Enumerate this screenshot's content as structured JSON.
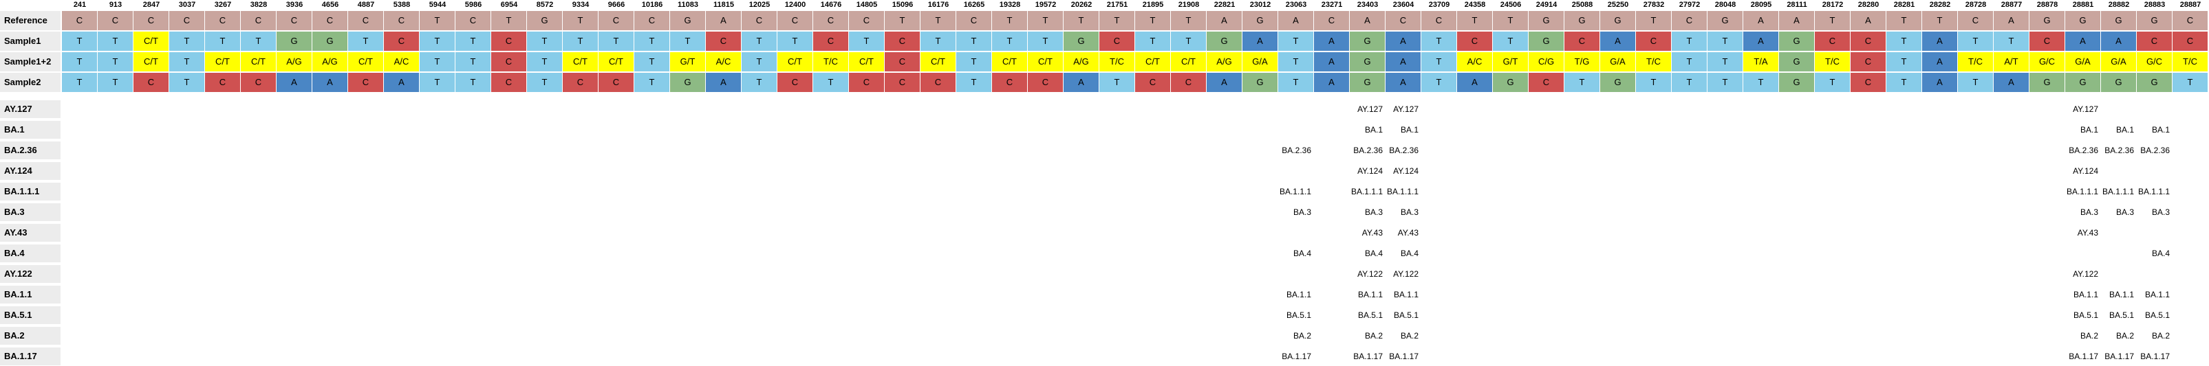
{
  "colors": {
    "A": "#4a86c5",
    "C": "#cf5151",
    "G": "#8dba84",
    "T": "#87cce9",
    "ref": "#c9a59e",
    "mixed": "#ffff00",
    "label_shade": "#ececec"
  },
  "positions": [
    "241",
    "913",
    "2847",
    "3037",
    "3267",
    "3828",
    "3936",
    "4656",
    "4887",
    "5388",
    "5944",
    "5986",
    "6954",
    "8572",
    "9334",
    "9666",
    "10186",
    "11083",
    "11815",
    "12025",
    "12400",
    "14676",
    "14805",
    "15096",
    "16176",
    "16265",
    "19328",
    "19572",
    "20262",
    "21751",
    "21895",
    "21908",
    "22821",
    "23012",
    "23063",
    "23271",
    "23403",
    "23604",
    "23709",
    "24358",
    "24506",
    "24914",
    "25088",
    "25250",
    "27832",
    "27972",
    "28048",
    "28095",
    "28111",
    "28172",
    "28280",
    "28281",
    "28282",
    "28728",
    "28877",
    "28878",
    "28881",
    "28882",
    "28883",
    "28887"
  ],
  "rows": [
    {
      "label": "Reference",
      "cells": [
        "C",
        "C",
        "C",
        "C",
        "C",
        "C",
        "C",
        "C",
        "C",
        "C",
        "T",
        "C",
        "T",
        "G",
        "T",
        "C",
        "C",
        "G",
        "A",
        "C",
        "C",
        "C",
        "C",
        "T",
        "T",
        "C",
        "T",
        "T",
        "T",
        "T",
        "T",
        "T",
        "A",
        "G",
        "A",
        "C",
        "A",
        "C",
        "C",
        "T",
        "T",
        "G",
        "G",
        "G",
        "T",
        "C",
        "G",
        "A",
        "A",
        "T",
        "A",
        "T",
        "T",
        "C",
        "A",
        "G",
        "G",
        "G",
        "G",
        "C"
      ]
    },
    {
      "label": "Sample1",
      "cells": [
        "T",
        "T",
        "C/T",
        "T",
        "T",
        "T",
        "G",
        "G",
        "T",
        "C",
        "T",
        "T",
        "C",
        "T",
        "T",
        "T",
        "T",
        "T",
        "C",
        "T",
        "T",
        "C",
        "T",
        "C",
        "T",
        "T",
        "T",
        "T",
        "G",
        "C",
        "T",
        "T",
        "G",
        "A",
        "T",
        "A",
        "G",
        "A",
        "T",
        "C",
        "T",
        "G",
        "C",
        "A",
        "C",
        "T",
        "T",
        "A",
        "G",
        "C",
        "C",
        "T",
        "A",
        "T",
        "T",
        "C",
        "A",
        "A",
        "C",
        "C"
      ]
    },
    {
      "label": "Sample1+2",
      "cells": [
        "T",
        "T",
        "C/T",
        "T",
        "C/T",
        "C/T",
        "A/G",
        "A/G",
        "C/T",
        "A/C",
        "T",
        "T",
        "C",
        "T",
        "C/T",
        "C/T",
        "T",
        "G/T",
        "A/C",
        "T",
        "C/T",
        "T/C",
        "C/T",
        "C",
        "C/T",
        "T",
        "C/T",
        "C/T",
        "A/G",
        "T/C",
        "C/T",
        "C/T",
        "A/G",
        "G/A",
        "T",
        "A",
        "G",
        "A",
        "T",
        "A/C",
        "G/T",
        "C/G",
        "T/G",
        "G/A",
        "T/C",
        "T",
        "T",
        "T/A",
        "G",
        "T/C",
        "C",
        "T",
        "A",
        "T/C",
        "A/T",
        "G/C",
        "G/A",
        "G/A",
        "G/C",
        "T/C"
      ]
    },
    {
      "label": "Sample2",
      "cells": [
        "T",
        "T",
        "C",
        "T",
        "C",
        "C",
        "A",
        "A",
        "C",
        "A",
        "T",
        "T",
        "C",
        "T",
        "C",
        "C",
        "T",
        "G",
        "A",
        "T",
        "C",
        "T",
        "C",
        "C",
        "C",
        "T",
        "C",
        "C",
        "A",
        "T",
        "C",
        "C",
        "A",
        "G",
        "T",
        "A",
        "G",
        "A",
        "T",
        "A",
        "G",
        "C",
        "T",
        "G",
        "T",
        "T",
        "T",
        "T",
        "G",
        "T",
        "C",
        "T",
        "A",
        "T",
        "A",
        "G",
        "G",
        "G",
        "G",
        "T"
      ]
    }
  ],
  "lineage_labels": [
    "AY.127",
    "BA.1",
    "BA.2.36",
    "AY.124",
    "BA.1.1.1",
    "BA.3",
    "AY.43",
    "BA.4",
    "AY.122",
    "BA.1.1",
    "BA.5.1",
    "BA.2",
    "BA.1.17"
  ],
  "lineage_columns": [
    "23063",
    "23403",
    "23604",
    "28881",
    "28882",
    "28883"
  ],
  "lineage_values": [
    [
      "",
      "AY.127",
      "AY.127",
      "AY.127",
      "",
      ""
    ],
    [
      "",
      "BA.1",
      "BA.1",
      "BA.1",
      "BA.1",
      "BA.1"
    ],
    [
      "BA.2.36",
      "BA.2.36",
      "BA.2.36",
      "BA.2.36",
      "BA.2.36",
      "BA.2.36"
    ],
    [
      "",
      "AY.124",
      "AY.124",
      "AY.124",
      "",
      ""
    ],
    [
      "BA.1.1.1",
      "BA.1.1.1",
      "BA.1.1.1",
      "BA.1.1.1",
      "BA.1.1.1",
      "BA.1.1.1"
    ],
    [
      "BA.3",
      "BA.3",
      "BA.3",
      "BA.3",
      "BA.3",
      "BA.3"
    ],
    [
      "",
      "AY.43",
      "AY.43",
      "AY.43",
      "",
      ""
    ],
    [
      "BA.4",
      "BA.4",
      "BA.4",
      "",
      "",
      "BA.4"
    ],
    [
      "",
      "AY.122",
      "AY.122",
      "AY.122",
      "",
      ""
    ],
    [
      "BA.1.1",
      "BA.1.1",
      "BA.1.1",
      "BA.1.1",
      "BA.1.1",
      "BA.1.1"
    ],
    [
      "BA.5.1",
      "BA.5.1",
      "BA.5.1",
      "BA.5.1",
      "BA.5.1",
      "BA.5.1"
    ],
    [
      "BA.2",
      "BA.2",
      "BA.2",
      "BA.2",
      "BA.2",
      "BA.2"
    ],
    [
      "BA.1.17",
      "BA.1.17",
      "BA.1.17",
      "BA.1.17",
      "BA.1.17",
      "BA.1.17"
    ]
  ]
}
